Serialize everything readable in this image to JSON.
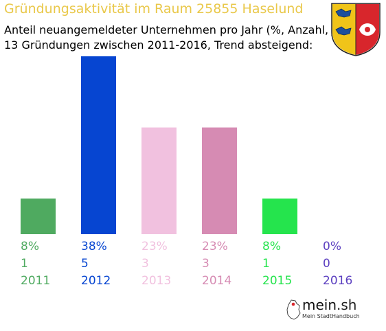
{
  "header": {
    "title": "Gründungsaktivität im Raum 25855 Haselund",
    "subtitle_line1": "Anteil neuangemeldeter Unternehmen pro Jahr (%, Anzahl, Jahr)",
    "subtitle_line2": "13 Gründungen zwischen 2011-2016, Trend absteigend:"
  },
  "crest": {
    "icon": "schleswig-holstein-coat-of-arms-icon"
  },
  "chart_data": {
    "type": "bar",
    "categories": [
      "2011",
      "2012",
      "2013",
      "2014",
      "2015",
      "2016"
    ],
    "percent_labels": [
      "8%",
      "38%",
      "23%",
      "23%",
      "8%",
      "0%"
    ],
    "values": [
      1,
      5,
      3,
      3,
      1,
      0
    ],
    "colors": [
      "#4faa60",
      "#0645d1",
      "#f1c1df",
      "#d68bb3",
      "#25e44d",
      "#5b3fc0"
    ],
    "ylim": [
      0,
      5
    ],
    "grid": false,
    "legend": "none"
  },
  "logo": {
    "text_main": "mein",
    "text_dot": ".sh",
    "tagline": "Mein StadtHandbuch",
    "icon": "germany-map-icon"
  }
}
